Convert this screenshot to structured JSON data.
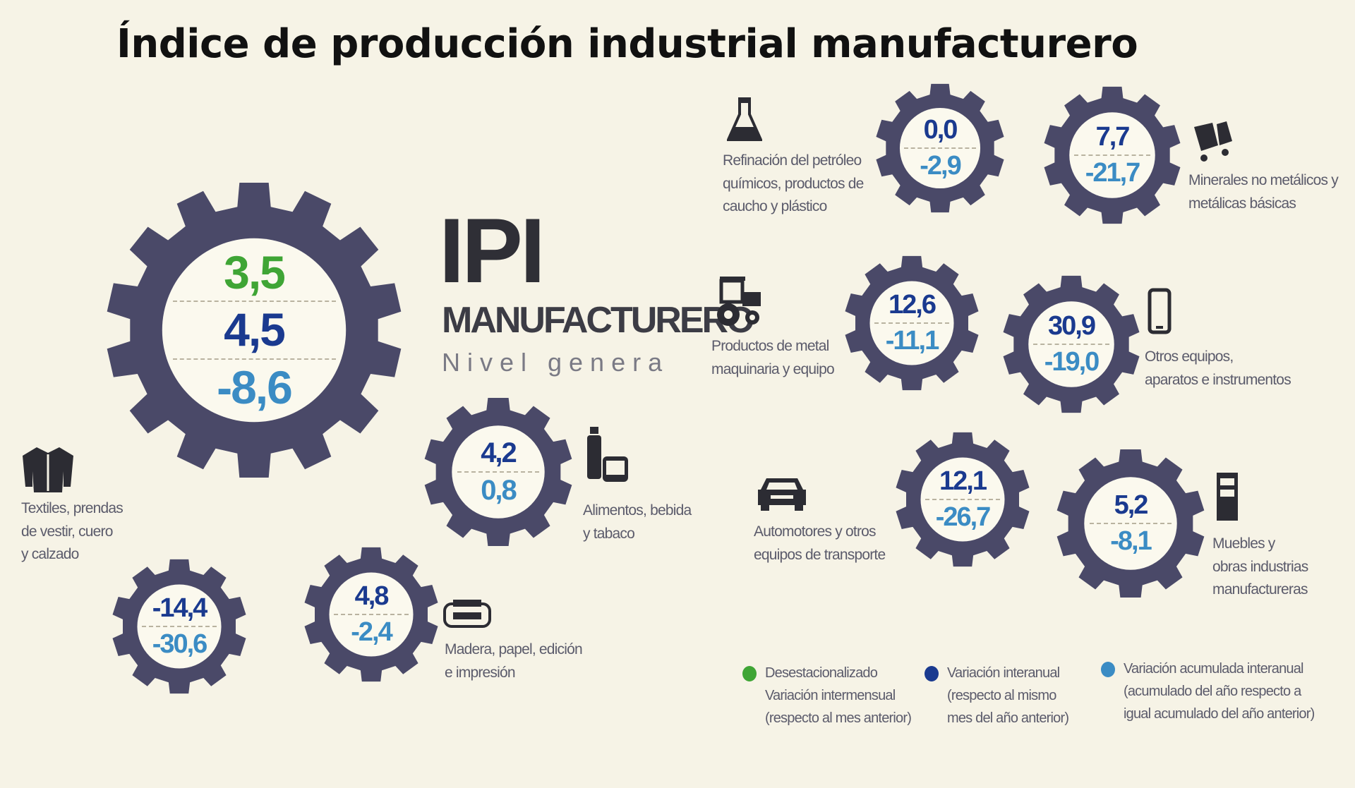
{
  "title": "Índice de producción industrial manufacturero",
  "header": {
    "ipi": "IPI",
    "manufacturero": "MANUFACTURERO",
    "nivel": "Nivel genera"
  },
  "colors": {
    "gear": "#4a4968",
    "inner": "#fbf9ee",
    "green": "#3fa535",
    "navy": "#1a3a8f",
    "light_blue": "#3b8cc4"
  },
  "main": {
    "v1": "3,5",
    "v2": "4,5",
    "v3": "-8,6"
  },
  "sectors": {
    "alimentos": {
      "v1": "4,2",
      "v2": "0,8",
      "label_1": "Alimentos, bebida",
      "label_2": "y tabaco",
      "icon": "food-icon"
    },
    "textiles": {
      "v1": "-14,4",
      "v2": "-30,6",
      "label_1": "Textiles, prendas",
      "label_2": "de vestir, cuero",
      "label_3": "y calzado",
      "icon": "jacket-icon"
    },
    "madera": {
      "v1": "4,8",
      "v2": "-2,4",
      "label_1": "Madera, papel, edición",
      "label_2": "e impresión",
      "icon": "printer-icon"
    },
    "refinacion": {
      "v1": "0,0",
      "v2": "-2,9",
      "label_1": "Refinación del petróleo",
      "label_2": "químicos, productos de",
      "label_3": "caucho y plástico",
      "icon": "flask-icon"
    },
    "minerales": {
      "v1": "7,7",
      "v2": "-21,7",
      "label_1": "Minerales no metálicos y",
      "label_2": "metálicas básicas",
      "icon": "cart-icon"
    },
    "metal": {
      "v1": "12,6",
      "v2": "-11,1",
      "label_1": "Productos de metal",
      "label_2": "maquinaria y equipo",
      "icon": "tractor-icon"
    },
    "otros_equipos": {
      "v1": "30,9",
      "v2": "-19,0",
      "label_1": "Otros equipos,",
      "label_2": "aparatos e instrumentos",
      "icon": "phone-icon"
    },
    "automotores": {
      "v1": "12,1",
      "v2": "-26,7",
      "label_1": "Automotores y otros",
      "label_2": "equipos de transporte",
      "icon": "car-icon"
    },
    "muebles": {
      "v1": "5,2",
      "v2": "-8,1",
      "label_1": "Muebles y",
      "label_2": "obras industrias",
      "label_3": "manufactureras",
      "icon": "furniture-icon"
    }
  },
  "legend": {
    "green": {
      "l1": "Desestacionalizado",
      "l2": "Variación intermensual",
      "l3": "(respecto al mes anterior)"
    },
    "navy": {
      "l1": "Variación interanual",
      "l2": "(respecto al mismo",
      "l3": "mes del año anterior)"
    },
    "light_blue": {
      "l1": "Variación acumulada interanual",
      "l2": "(acumulado del año respecto a",
      "l3": "igual acumulado del año anterior)"
    }
  }
}
